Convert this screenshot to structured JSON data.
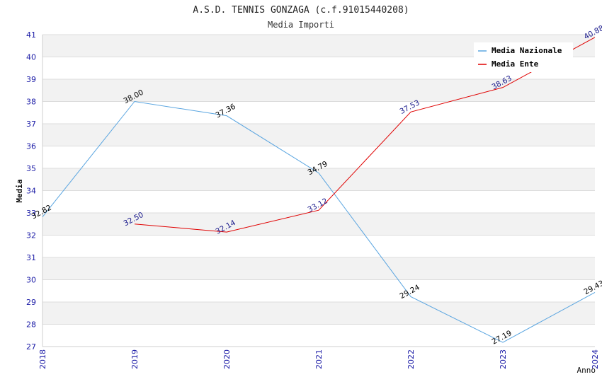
{
  "chart_data": {
    "type": "line",
    "title": "A.S.D. TENNIS GONZAGA (c.f.91015440208)",
    "subtitle": "Media Importi",
    "xlabel": "Anno",
    "ylabel": "Media",
    "categories": [
      "2018",
      "2019",
      "2020",
      "2021",
      "2022",
      "2023",
      "2024"
    ],
    "ylim": [
      27,
      41
    ],
    "yticks": [
      "27",
      "28",
      "29",
      "30",
      "31",
      "32",
      "33",
      "34",
      "35",
      "36",
      "37",
      "38",
      "39",
      "40",
      "41"
    ],
    "grid": true,
    "legend_position": "top-right",
    "series": [
      {
        "name": "Media Nazionale",
        "color": "#5aa5e0",
        "label_color": "#000000",
        "values": [
          32.82,
          38.0,
          37.36,
          34.79,
          29.24,
          27.19,
          29.43
        ],
        "labels": [
          "32.82",
          "38.00",
          "37.36",
          "34.79",
          "29.24",
          "27.19",
          "29.43"
        ]
      },
      {
        "name": "Media Ente",
        "color": "#e00000",
        "label_color": "#1a1a8c",
        "values": [
          null,
          32.5,
          32.14,
          33.12,
          37.53,
          38.63,
          40.88
        ],
        "labels": [
          "",
          "32.50",
          "32.14",
          "33.12",
          "37.53",
          "38.63",
          "40.88"
        ]
      }
    ]
  }
}
